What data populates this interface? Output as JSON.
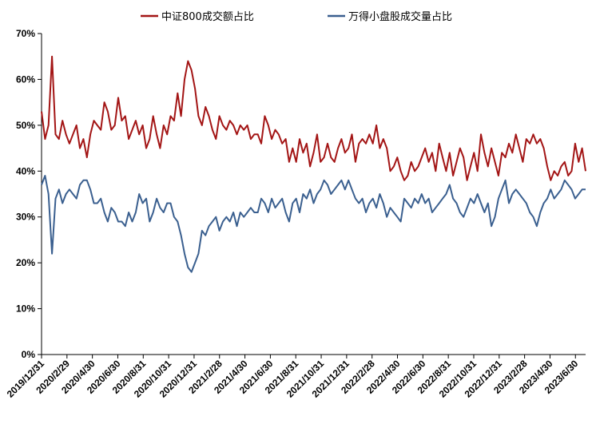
{
  "chart_data": {
    "type": "line",
    "title": "",
    "xlabel": "",
    "ylabel": "",
    "ylim": [
      0,
      70
    ],
    "y_ticks": [
      "0%",
      "10%",
      "20%",
      "30%",
      "40%",
      "50%",
      "60%",
      "70%"
    ],
    "x_ticks": [
      "2019/12/31",
      "2020/2/29",
      "2020/4/30",
      "2020/6/30",
      "2020/8/31",
      "2020/10/31",
      "2020/12/31",
      "2021/2/28",
      "2021/4/30",
      "2021/6/30",
      "2021/8/31",
      "2021/10/31",
      "2021/12/31",
      "2022/2/28",
      "2022/4/30",
      "2022/6/30",
      "2022/8/31",
      "2022/10/31",
      "2022/12/31",
      "2023/2/28",
      "2023/4/30",
      "2023/6/30"
    ],
    "grid": false,
    "legend_position": "top",
    "series": [
      {
        "name": "中证800成交额占比",
        "color": "#A31515",
        "values": [
          53,
          47,
          50,
          65,
          48,
          47,
          51,
          48,
          46,
          48,
          50,
          45,
          47,
          43,
          48,
          51,
          50,
          49,
          55,
          53,
          49,
          50,
          56,
          51,
          52,
          47,
          49,
          51,
          48,
          50,
          45,
          47,
          52,
          48,
          45,
          50,
          48,
          52,
          51,
          57,
          52,
          60,
          64,
          62,
          58,
          52,
          50,
          54,
          52,
          49,
          47,
          52,
          50,
          49,
          51,
          50,
          48,
          50,
          49,
          50,
          47,
          48,
          48,
          46,
          52,
          50,
          47,
          49,
          48,
          46,
          47,
          42,
          45,
          42,
          47,
          44,
          46,
          41,
          44,
          48,
          42,
          43,
          46,
          43,
          42,
          45,
          47,
          44,
          45,
          48,
          42,
          46,
          47,
          46,
          48,
          46,
          50,
          45,
          47,
          45,
          40,
          41,
          43,
          40,
          38,
          39,
          42,
          40,
          41,
          43,
          45,
          42,
          44,
          40,
          46,
          43,
          40,
          44,
          39,
          42,
          45,
          43,
          38,
          41,
          44,
          40,
          48,
          44,
          41,
          45,
          42,
          39,
          44,
          43,
          46,
          44,
          48,
          45,
          42,
          47,
          46,
          48,
          46,
          47,
          45,
          41,
          38,
          40,
          39,
          41,
          42,
          39,
          40,
          46,
          42,
          45,
          40
        ]
      },
      {
        "name": "万得小盘股成交量占比",
        "color": "#3A5F8F",
        "values": [
          37,
          39,
          35,
          22,
          34,
          36,
          33,
          35,
          36,
          35,
          34,
          37,
          38,
          38,
          36,
          33,
          33,
          34,
          31,
          29,
          32,
          31,
          29,
          29,
          28,
          31,
          29,
          31,
          35,
          33,
          34,
          29,
          31,
          34,
          32,
          31,
          33,
          33,
          30,
          29,
          26,
          22,
          19,
          18,
          20,
          22,
          27,
          26,
          28,
          29,
          30,
          27,
          29,
          30,
          29,
          31,
          28,
          31,
          30,
          31,
          32,
          31,
          31,
          34,
          33,
          31,
          34,
          32,
          33,
          34,
          31,
          29,
          33,
          34,
          31,
          35,
          34,
          36,
          33,
          35,
          36,
          38,
          37,
          35,
          36,
          37,
          38,
          36,
          38,
          36,
          34,
          33,
          34,
          31,
          33,
          34,
          32,
          35,
          33,
          30,
          32,
          31,
          30,
          29,
          34,
          33,
          32,
          34,
          33,
          35,
          33,
          34,
          31,
          32,
          33,
          34,
          35,
          37,
          34,
          33,
          31,
          30,
          32,
          34,
          33,
          35,
          33,
          31,
          33,
          28,
          30,
          34,
          36,
          38,
          33,
          35,
          36,
          35,
          34,
          33,
          31,
          30,
          28,
          31,
          33,
          34,
          36,
          34,
          35,
          36,
          38,
          37,
          36,
          34,
          35,
          36,
          36
        ]
      }
    ]
  }
}
